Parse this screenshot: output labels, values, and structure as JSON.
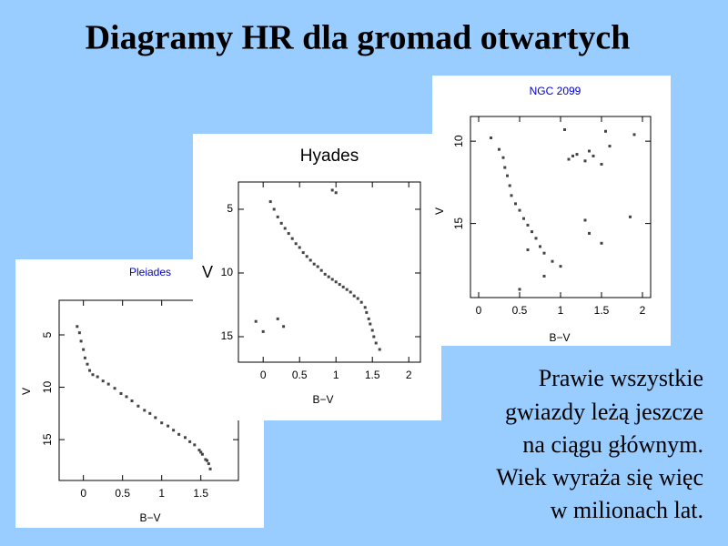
{
  "title": "Diagramy HR dla gromad otwartych",
  "text": [
    "Prawie wszystkie",
    "gwiazdy leżą jeszcze",
    "na ciągu głównym.",
    "Wiek wyraża się więc",
    "w milionach lat."
  ],
  "chart_data": [
    {
      "type": "scatter",
      "title": "Pleiades",
      "xlabel": "B−V",
      "ylabel": "V",
      "color": "#444444",
      "xlim": [
        -0.31,
        1.98
      ],
      "ylim": [
        18.9,
        1.7
      ],
      "xticks": [
        0,
        0.5,
        1,
        1.5
      ],
      "yticks": [
        5,
        10,
        15
      ],
      "x": [
        -0.08,
        -0.05,
        -0.03,
        0.0,
        0.02,
        0.05,
        0.08,
        0.12,
        0.18,
        0.25,
        0.32,
        0.4,
        0.48,
        0.55,
        0.62,
        0.7,
        0.78,
        0.85,
        0.92,
        1.0,
        1.08,
        1.15,
        1.22,
        1.3,
        1.36,
        1.42,
        1.48,
        1.52,
        1.56,
        1.6,
        1.62,
        1.58,
        1.5
      ],
      "values": [
        4.2,
        4.8,
        5.6,
        6.4,
        7.2,
        7.8,
        8.4,
        8.8,
        9.0,
        9.4,
        9.7,
        10.1,
        10.6,
        10.9,
        11.3,
        11.8,
        12.2,
        12.5,
        12.9,
        13.4,
        13.7,
        14.1,
        14.5,
        14.8,
        15.2,
        15.5,
        16.0,
        16.4,
        16.9,
        17.3,
        17.8,
        17.0,
        16.2
      ]
    },
    {
      "type": "scatter",
      "title": "Hyades",
      "xlabel": "B−V",
      "ylabel": "V",
      "color": "#444444",
      "xlim": [
        -0.34,
        2.16
      ],
      "ylim": [
        17,
        2.86
      ],
      "xticks": [
        0,
        0.5,
        1,
        1.5,
        2
      ],
      "yticks": [
        5,
        10,
        15
      ],
      "x": [
        0.1,
        0.15,
        0.2,
        0.25,
        0.3,
        0.35,
        0.4,
        0.45,
        0.5,
        0.55,
        0.6,
        0.65,
        0.7,
        0.75,
        0.8,
        0.85,
        0.9,
        0.95,
        1.0,
        1.05,
        1.1,
        1.15,
        1.2,
        1.25,
        1.3,
        1.35,
        1.4,
        1.42,
        1.45,
        1.47,
        1.5,
        1.52,
        1.55,
        1.6,
        0.95,
        1.0,
        -0.1,
        0.0,
        0.2,
        0.28
      ],
      "values": [
        4.4,
        5.0,
        5.6,
        6.1,
        6.5,
        6.9,
        7.3,
        7.7,
        8.0,
        8.4,
        8.7,
        9.0,
        9.3,
        9.5,
        9.8,
        10.1,
        10.3,
        10.5,
        10.7,
        10.9,
        11.1,
        11.3,
        11.5,
        11.8,
        12.0,
        12.3,
        12.7,
        13.1,
        13.6,
        14.0,
        14.5,
        15.0,
        15.5,
        16.0,
        3.5,
        3.7,
        13.8,
        14.6,
        13.6,
        14.2
      ]
    },
    {
      "type": "scatter",
      "title": "NGC 2099",
      "xlabel": "B−V",
      "ylabel": "V",
      "color": "#444444",
      "xlim": [
        -0.1,
        2.1
      ],
      "ylim": [
        19.5,
        8.5
      ],
      "xticks": [
        0,
        0.5,
        1,
        1.5,
        2
      ],
      "yticks": [
        10,
        15
      ],
      "x": [
        0.15,
        0.25,
        0.3,
        0.32,
        0.35,
        0.38,
        0.4,
        0.45,
        0.5,
        0.55,
        0.6,
        0.65,
        0.7,
        0.75,
        0.8,
        0.9,
        1.0,
        1.1,
        1.15,
        1.2,
        1.3,
        1.35,
        1.4,
        1.5,
        1.6,
        1.3,
        1.35,
        1.5,
        1.85,
        1.05,
        1.55,
        0.6,
        0.8,
        0.5,
        1.9
      ],
      "values": [
        9.8,
        10.5,
        11.0,
        11.6,
        12.1,
        12.7,
        13.3,
        13.8,
        14.2,
        14.7,
        15.1,
        15.5,
        15.9,
        16.4,
        16.8,
        17.3,
        17.6,
        11.1,
        10.9,
        10.8,
        11.2,
        10.6,
        10.9,
        11.4,
        10.3,
        14.8,
        15.6,
        16.2,
        14.6,
        9.3,
        9.4,
        16.6,
        18.2,
        19.0,
        9.6
      ]
    }
  ]
}
